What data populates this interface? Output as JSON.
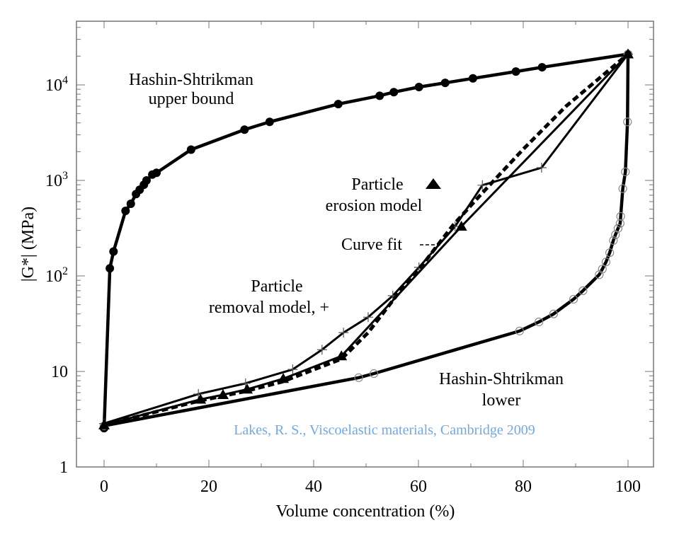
{
  "chart_data": {
    "type": "line",
    "xlabel": "Volume concentration (%)",
    "ylabel": "|G*| (MPa)",
    "xlim": [
      -5.5,
      104.5
    ],
    "ylim": [
      1,
      44000
    ],
    "yscale": "log",
    "xticks": [
      0,
      20,
      40,
      60,
      80,
      100
    ],
    "yticks": [
      {
        "v": 1,
        "base": "1",
        "exp": ""
      },
      {
        "v": 10,
        "base": "10",
        "exp": ""
      },
      {
        "v": 100,
        "base": "10",
        "exp": "2"
      },
      {
        "v": 1000,
        "base": "10",
        "exp": "3"
      },
      {
        "v": 10000,
        "base": "10",
        "exp": "4"
      }
    ],
    "credit": "Lakes, R. S., Viscoelastic materials, Cambridge 2009",
    "credit_color": "#6fa8f0",
    "annotations": {
      "upper1": "Hashin-Shtrikman",
      "upper2": "upper bound",
      "erosion1": "Particle",
      "erosion2": "erosion model",
      "fit": "Curve fit",
      "removal1": "Particle",
      "removal2": "removal model, +",
      "lower1": "Hashin-Shtrikman",
      "lower2": "lower"
    },
    "series": [
      {
        "name": "Hashin-Shtrikman upper bound",
        "marker": "filled-circle",
        "line": "solid-thick",
        "x": [
          0,
          1.1,
          1.8,
          4.1,
          5.1,
          6.1,
          6.8,
          7.6,
          8.1,
          9.2,
          10,
          16.6,
          26.8,
          31.6,
          44.7,
          52.6,
          55.3,
          60.1,
          65.1,
          70.4,
          78.6,
          83.6,
          100
        ],
        "y": [
          2.55,
          120,
          180,
          480,
          570,
          720,
          800,
          900,
          1000,
          1150,
          1200,
          2100,
          3400,
          4100,
          6300,
          7700,
          8400,
          9500,
          10500,
          11700,
          13800,
          15300,
          21000
        ]
      },
      {
        "name": "Hashin-Shtrikman lower",
        "marker": "open-circle",
        "line": "solid-thick",
        "x": [
          0,
          48.6,
          51.5,
          79.3,
          83,
          85.8,
          89.6,
          91.4,
          94.5,
          95.1,
          95.8,
          96.5,
          97.2,
          97.6,
          98.1,
          98.5,
          98.6,
          99,
          99.5,
          99.9,
          100
        ],
        "y": [
          2.7,
          8.6,
          9.5,
          26.5,
          33,
          40,
          57,
          70,
          103,
          118,
          140,
          175,
          235,
          270,
          315,
          355,
          420,
          820,
          1230,
          4100,
          21000
        ]
      },
      {
        "name": "Particle removal model",
        "marker": "plus",
        "line": "solid",
        "x": [
          0,
          18,
          27,
          36,
          41.6,
          45.7,
          50.4,
          55.1,
          60.1,
          67,
          72.2,
          83.5,
          100
        ],
        "y": [
          2.85,
          5.8,
          7.5,
          10.5,
          16.9,
          25.5,
          37,
          62,
          123,
          330,
          890,
          1360,
          21000
        ]
      },
      {
        "name": "Particle erosion model",
        "marker": "triangle",
        "line": "solid",
        "x": [
          0,
          18.4,
          22.7,
          27.3,
          34.2,
          45.3,
          68.2,
          100
        ],
        "y": [
          2.75,
          5.1,
          5.7,
          6.5,
          8.4,
          14.5,
          330,
          21000
        ]
      },
      {
        "name": "Curve fit",
        "marker": "none",
        "line": "dashed-thick",
        "x": [
          0,
          18,
          27,
          34,
          45.3,
          50.4,
          55.8,
          61.2,
          66.6,
          72,
          80.1,
          88.2,
          100
        ],
        "y": [
          2.75,
          4.9,
          6.2,
          7.8,
          13.5,
          25.5,
          62,
          140,
          340,
          720,
          2150,
          6000,
          21000
        ]
      }
    ]
  }
}
